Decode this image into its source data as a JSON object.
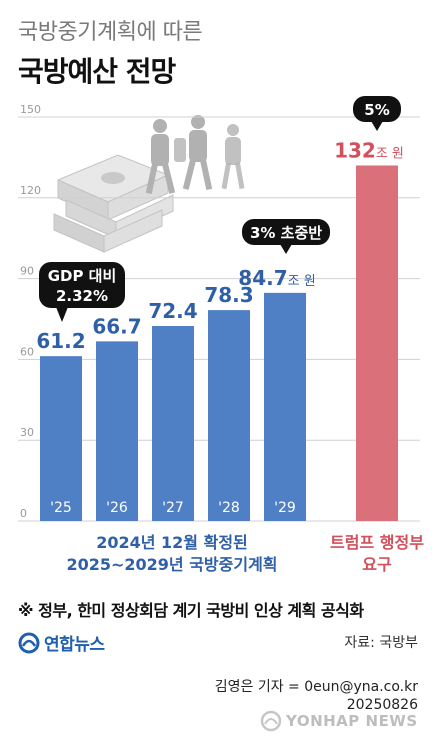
{
  "header": {
    "subtitle": "국방중기계획에 따른",
    "title": "국방예산 전망"
  },
  "chart_data": {
    "type": "bar",
    "unit": "조 원",
    "ylim": [
      0,
      150
    ],
    "yticks": [
      "0",
      "30",
      "60",
      "90",
      "120",
      "150"
    ],
    "grid": true,
    "categories": [
      "'25",
      "'26",
      "'27",
      "'28",
      "'29",
      ""
    ],
    "values": [
      61.2,
      66.7,
      72.4,
      78.3,
      84.7,
      132
    ],
    "value_labels": [
      "61.2",
      "66.7",
      "72.4",
      "78.3",
      "84.7",
      "132"
    ],
    "unit_labels": [
      "",
      "",
      "",
      "",
      "조 원",
      "조 원"
    ],
    "colors": {
      "plan": "#4f80c6",
      "trump": "#d9707a",
      "value_plan": "#2f5fa6",
      "value_trump": "#d24f5b",
      "grid": "#d0d0d0",
      "callout": "#111111"
    },
    "annotations": {
      "gdp": "GDP 대비\n2.32%",
      "mid": "3% 초중반",
      "top": "5%"
    },
    "groups": {
      "plan": "2024년 12월 확정된\n2025~2029년 국방중기계획",
      "trump": "트럼프 행정부\n요구"
    }
  },
  "footer": {
    "note": "※ 정부, 한미 정상회담 계기 국방비 인상 계획 공식화",
    "logo_text": "연합뉴스",
    "source": "자료: 국방부",
    "credit": "김영은 기자 = 0eun@yna.co.kr",
    "date": "20250826",
    "watermark": "YONHAP NEWS",
    "logo_icon": "yonhap-logo-icon",
    "watermark_icon": "yonhap-watermark-icon"
  }
}
